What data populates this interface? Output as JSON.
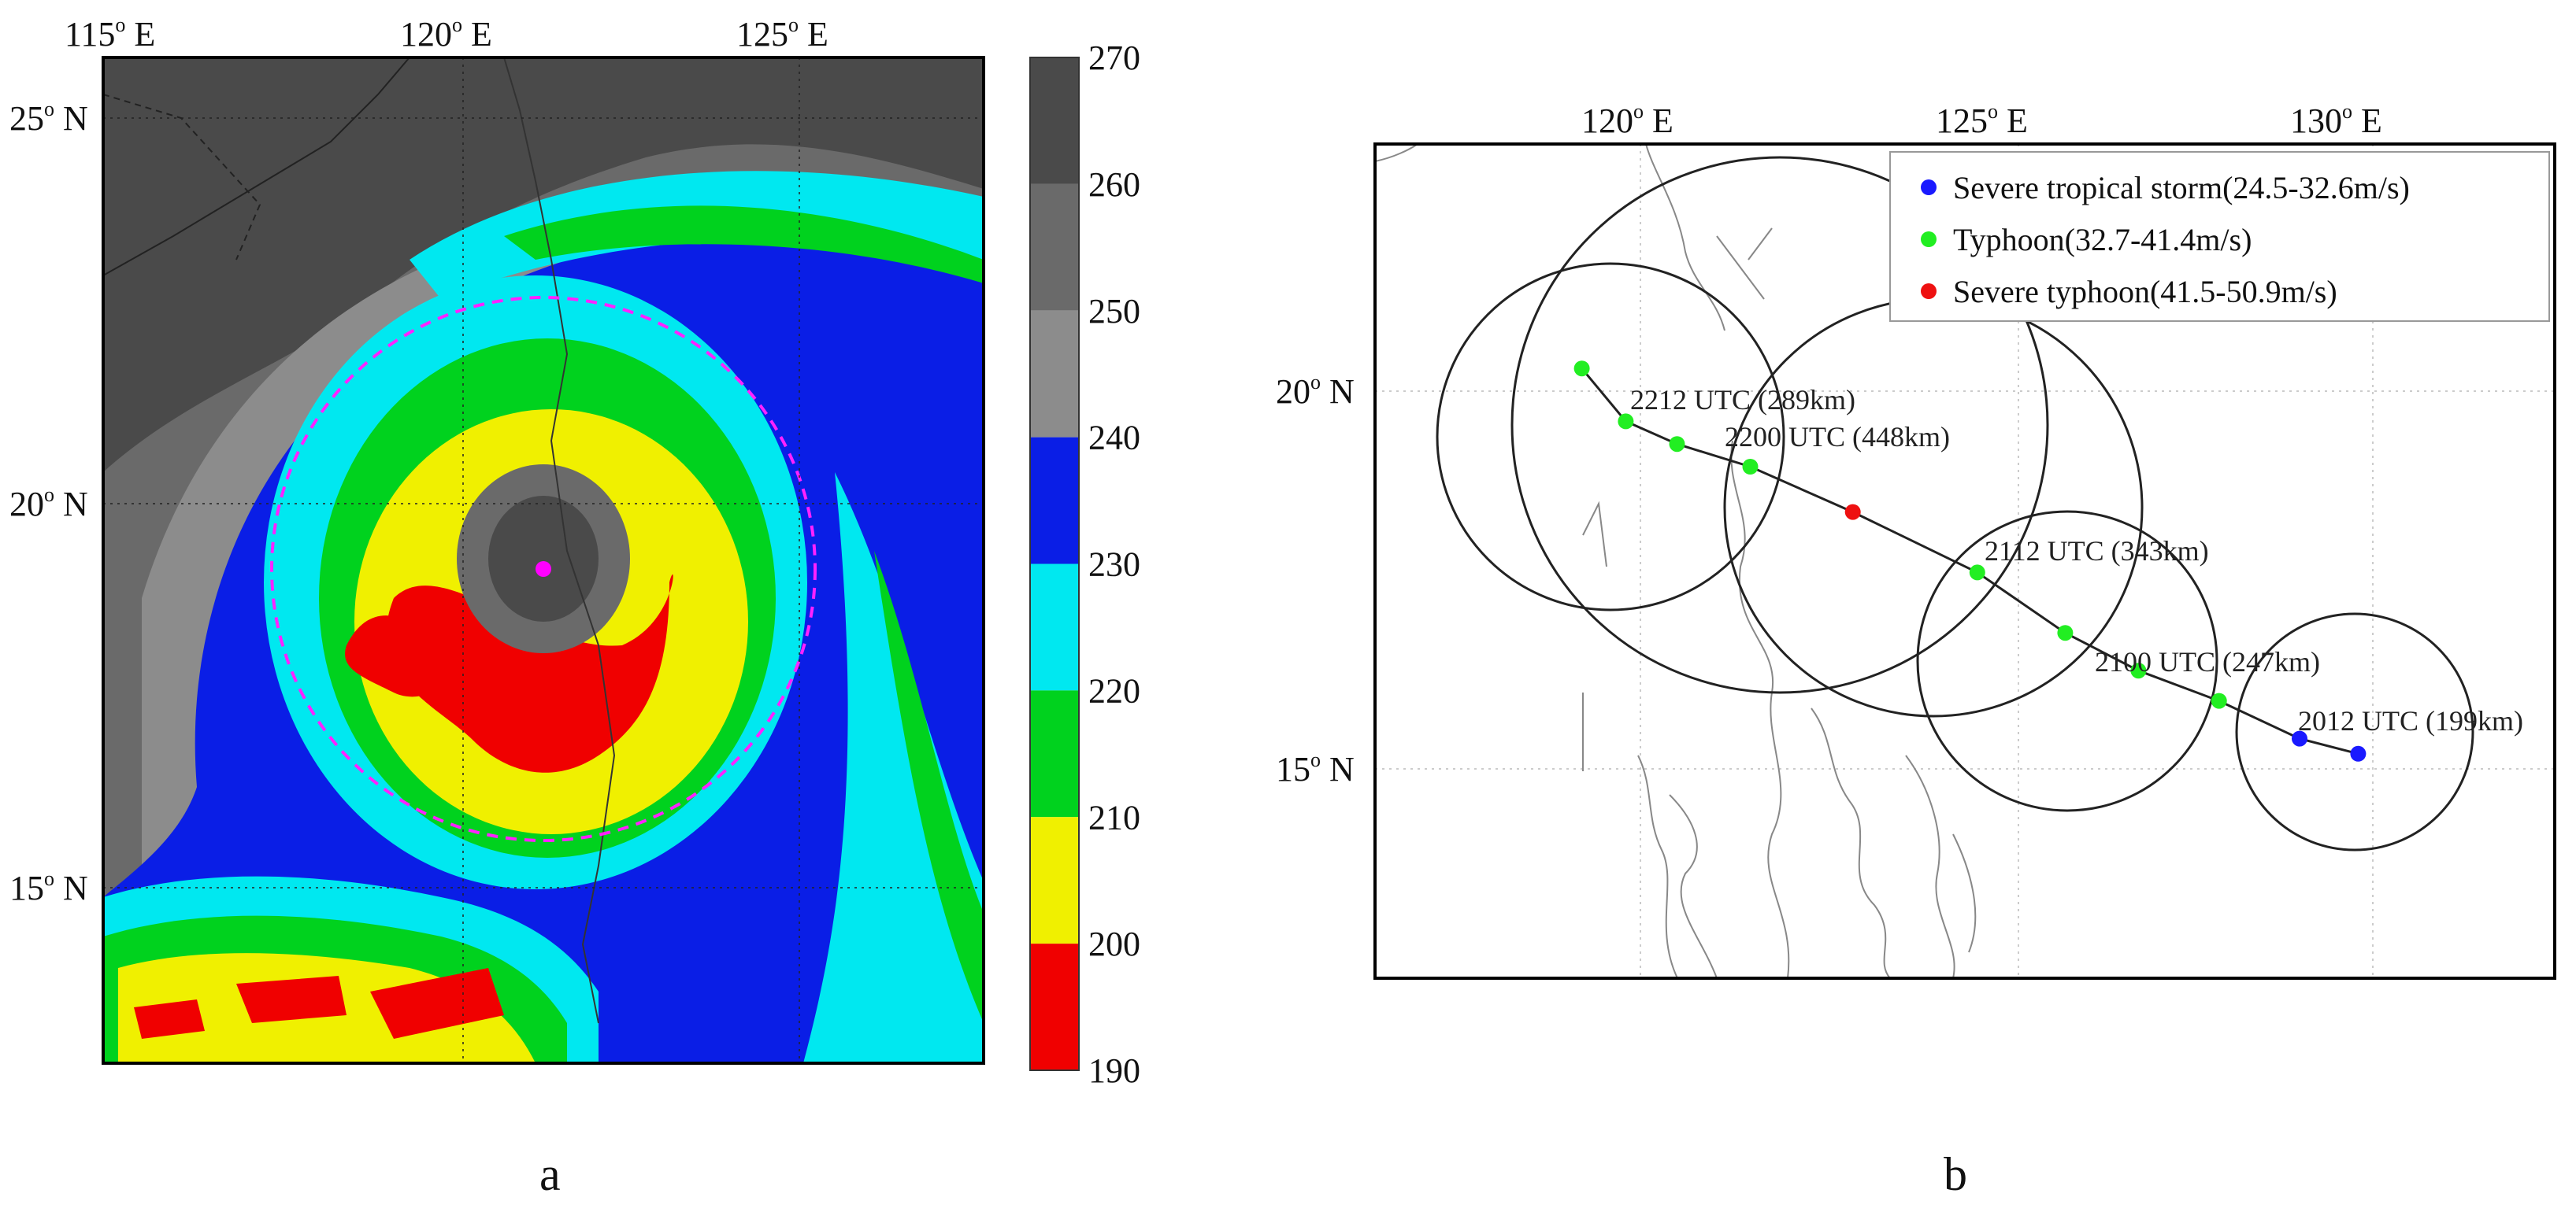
{
  "panel_a": {
    "label": "a",
    "lon_ticks": [
      "115",
      "120",
      "125"
    ],
    "lon_suffix": "E",
    "lat_ticks": [
      "25",
      "20",
      "15"
    ],
    "lat_suffix": "N",
    "colorbar": {
      "ticks": [
        "270",
        "260",
        "250",
        "240",
        "230",
        "220",
        "210",
        "200",
        "190"
      ],
      "colors": [
        "#4a4a4a",
        "#6a6a6a",
        "#8c8c8c",
        "#0a1ee6",
        "#00e8f0",
        "#00d21e",
        "#f0f000",
        "#f00000"
      ]
    },
    "center_marker_color": "#ff00ff",
    "circle_color": "#ff22ff"
  },
  "panel_b": {
    "label": "b",
    "lon_ticks": [
      "120",
      "125",
      "130"
    ],
    "lon_suffix": "E",
    "lat_ticks": [
      "20",
      "15"
    ],
    "lat_suffix": "N",
    "legend": [
      {
        "label": "Severe tropical storm(24.5-32.6m/s)",
        "color": "#1a1aff"
      },
      {
        "label": "Typhoon(32.7-41.4m/s)",
        "color": "#22ee22"
      },
      {
        "label": "Severe typhoon(41.5-50.9m/s)",
        "color": "#ee1111"
      }
    ],
    "track_points": [
      {
        "lon": 129.8,
        "lat": 15.2,
        "category": "Severe tropical storm"
      },
      {
        "lon": 129.0,
        "lat": 15.4,
        "category": "Severe tropical storm"
      },
      {
        "lon": 127.9,
        "lat": 15.9,
        "category": "Typhoon"
      },
      {
        "lon": 126.8,
        "lat": 16.3,
        "category": "Typhoon"
      },
      {
        "lon": 125.8,
        "lat": 16.8,
        "category": "Typhoon"
      },
      {
        "lon": 124.6,
        "lat": 17.6,
        "category": "Typhoon"
      },
      {
        "lon": 122.9,
        "lat": 18.4,
        "category": "Severe typhoon"
      },
      {
        "lon": 121.5,
        "lat": 19.0,
        "category": "Typhoon"
      },
      {
        "lon": 120.5,
        "lat": 19.3,
        "category": "Typhoon"
      },
      {
        "lon": 119.8,
        "lat": 19.6,
        "category": "Typhoon"
      },
      {
        "lon": 119.2,
        "lat": 20.3,
        "category": "Typhoon"
      }
    ],
    "annotations": [
      {
        "text": "2012 UTC (199km)",
        "radius_km": 199
      },
      {
        "text": "2100 UTC (247km)",
        "radius_km": 247
      },
      {
        "text": "2112 UTC (343km)",
        "radius_km": 343
      },
      {
        "text": "2200 UTC (448km)",
        "radius_km": 448
      },
      {
        "text": "2212 UTC (289km)",
        "radius_km": 289
      }
    ]
  }
}
